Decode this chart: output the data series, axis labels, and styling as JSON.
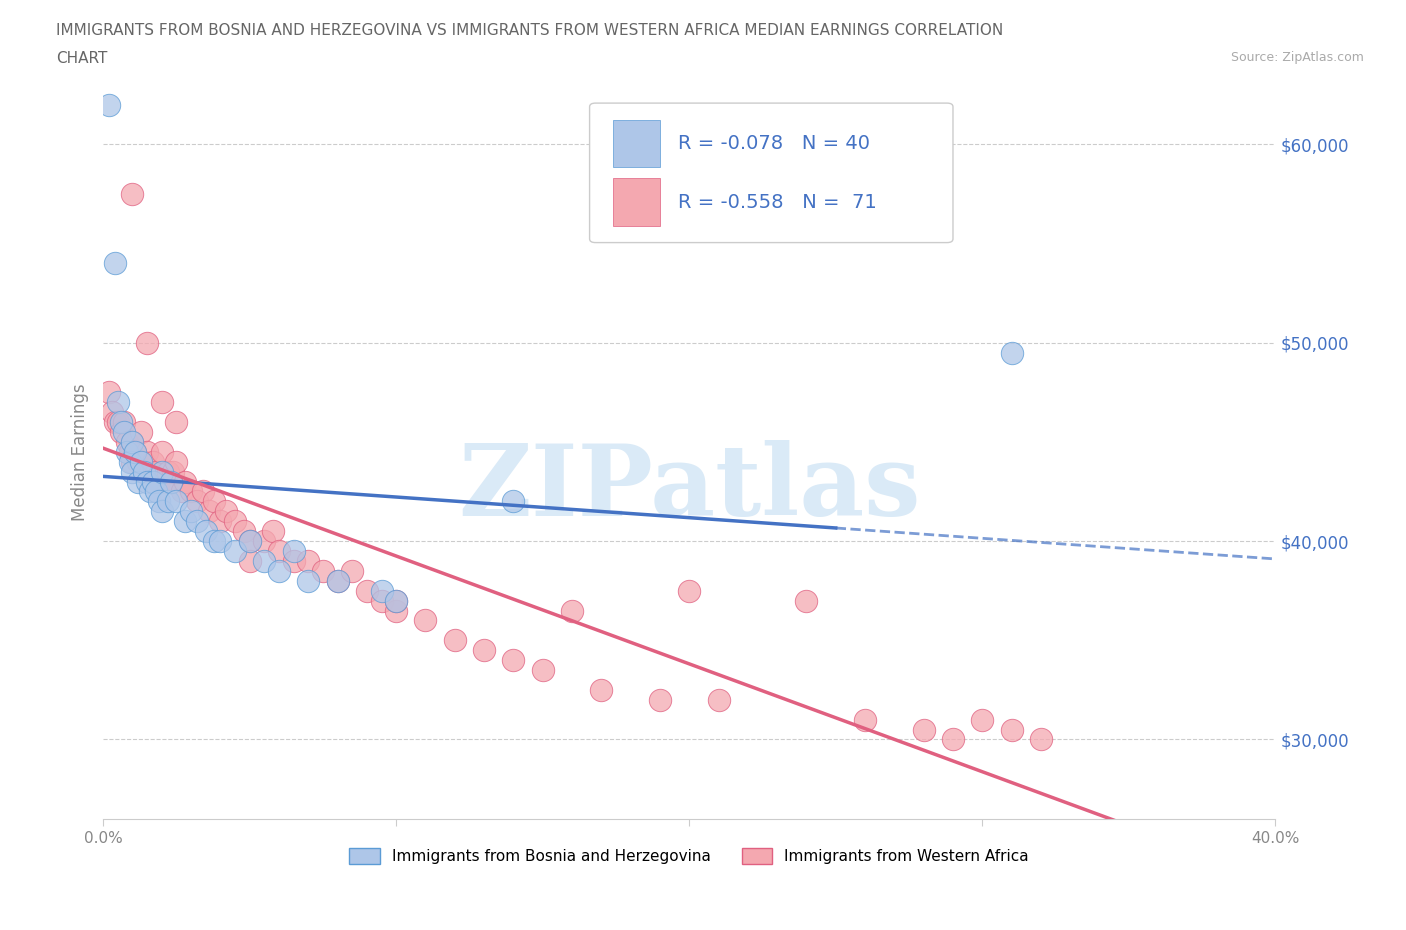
{
  "title_line1": "IMMIGRANTS FROM BOSNIA AND HERZEGOVINA VS IMMIGRANTS FROM WESTERN AFRICA MEDIAN EARNINGS CORRELATION",
  "title_line2": "CHART",
  "source_text": "Source: ZipAtlas.com",
  "ylabel": "Median Earnings",
  "xlim": [
    0.0,
    0.4
  ],
  "ylim": [
    26000,
    63000
  ],
  "yticks": [
    30000,
    40000,
    50000,
    60000
  ],
  "ytick_labels": [
    "$30,000",
    "$40,000",
    "$50,000",
    "$60,000"
  ],
  "xticks": [
    0.0,
    0.1,
    0.2,
    0.3,
    0.4
  ],
  "xtick_labels": [
    "0.0%",
    "",
    "",
    "",
    "40.0%"
  ],
  "legend_label1": "Immigrants from Bosnia and Herzegovina",
  "legend_label2": "Immigrants from Western Africa",
  "R1": -0.078,
  "N1": 40,
  "R2": -0.558,
  "N2": 71,
  "color1": "#aec6e8",
  "color2": "#f4a8b0",
  "edge_color1": "#5b9bd5",
  "edge_color2": "#e06080",
  "line_color1": "#4472c4",
  "line_color2": "#e06080",
  "watermark_color": "#daeaf7",
  "background_color": "#ffffff",
  "title_color": "#666666",
  "axis_color": "#4472c4",
  "blue_x": [
    0.002,
    0.004,
    0.005,
    0.006,
    0.007,
    0.008,
    0.009,
    0.01,
    0.01,
    0.011,
    0.012,
    0.013,
    0.014,
    0.015,
    0.016,
    0.017,
    0.018,
    0.019,
    0.02,
    0.02,
    0.022,
    0.023,
    0.025,
    0.028,
    0.03,
    0.032,
    0.035,
    0.038,
    0.04,
    0.045,
    0.05,
    0.055,
    0.06,
    0.065,
    0.07,
    0.08,
    0.095,
    0.1,
    0.14,
    0.31
  ],
  "blue_y": [
    62000,
    54000,
    47000,
    46000,
    45500,
    44500,
    44000,
    45000,
    43500,
    44500,
    43000,
    44000,
    43500,
    43000,
    42500,
    43000,
    42500,
    42000,
    43500,
    41500,
    42000,
    43000,
    42000,
    41000,
    41500,
    41000,
    40500,
    40000,
    40000,
    39500,
    40000,
    39000,
    38500,
    39500,
    38000,
    38000,
    37500,
    37000,
    42000,
    49500
  ],
  "pink_x": [
    0.002,
    0.003,
    0.004,
    0.005,
    0.006,
    0.007,
    0.008,
    0.009,
    0.01,
    0.01,
    0.011,
    0.012,
    0.013,
    0.014,
    0.015,
    0.016,
    0.017,
    0.018,
    0.019,
    0.02,
    0.021,
    0.022,
    0.023,
    0.024,
    0.025,
    0.027,
    0.028,
    0.03,
    0.032,
    0.034,
    0.036,
    0.038,
    0.04,
    0.042,
    0.045,
    0.048,
    0.05,
    0.055,
    0.058,
    0.06,
    0.065,
    0.07,
    0.075,
    0.08,
    0.085,
    0.09,
    0.095,
    0.1,
    0.11,
    0.12,
    0.13,
    0.14,
    0.15,
    0.16,
    0.17,
    0.19,
    0.21,
    0.24,
    0.26,
    0.28,
    0.29,
    0.3,
    0.31,
    0.32,
    0.01,
    0.015,
    0.02,
    0.025,
    0.05,
    0.1,
    0.2
  ],
  "pink_y": [
    47500,
    46500,
    46000,
    46000,
    45500,
    46000,
    45000,
    44500,
    45000,
    44000,
    44500,
    44000,
    45500,
    44000,
    44500,
    43500,
    44000,
    43500,
    43000,
    44500,
    43000,
    43500,
    43000,
    43500,
    44000,
    42500,
    43000,
    42500,
    42000,
    42500,
    41500,
    42000,
    41000,
    41500,
    41000,
    40500,
    40000,
    40000,
    40500,
    39500,
    39000,
    39000,
    38500,
    38000,
    38500,
    37500,
    37000,
    36500,
    36000,
    35000,
    34500,
    34000,
    33500,
    36500,
    32500,
    32000,
    32000,
    37000,
    31000,
    30500,
    30000,
    31000,
    30500,
    30000,
    57500,
    50000,
    47000,
    46000,
    39000,
    37000,
    37500
  ]
}
